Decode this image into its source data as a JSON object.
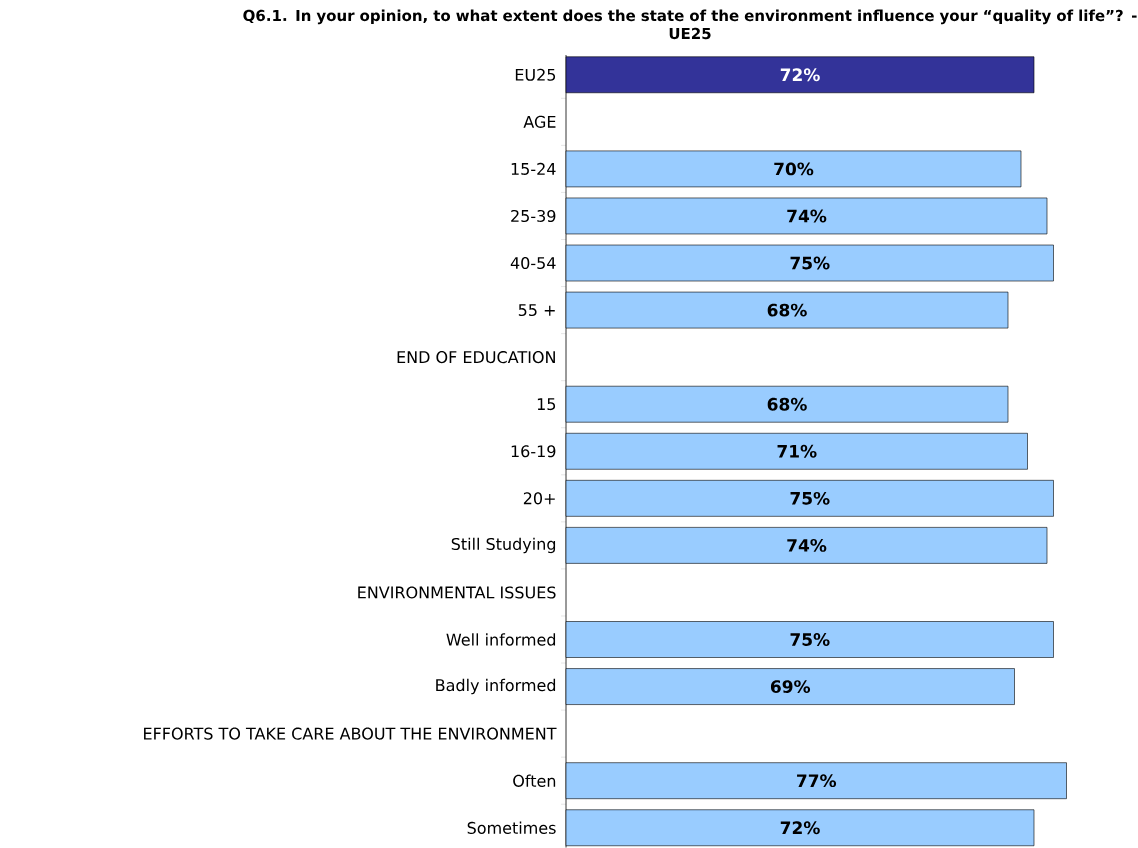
{
  "chart_data": {
    "type": "bar",
    "orientation": "horizontal",
    "title": "Q6.1. In your opinion, to what extent does the state of the environment influence your “quality of life”? - UE25",
    "categories": [
      "EU25",
      "AGE",
      "15-24",
      "25-39",
      "40-54",
      "55 +",
      "END OF EDUCATION",
      "15",
      "16-19",
      "20+",
      "Still Studying",
      "ENVIRONMENTAL ISSUES",
      "Well informed",
      "Badly informed",
      "EFFORTS TO TAKE CARE ABOUT THE ENVIRONMENT",
      "Often",
      "Sometimes"
    ],
    "values": [
      72,
      null,
      70,
      74,
      75,
      68,
      null,
      68,
      71,
      75,
      74,
      null,
      75,
      69,
      null,
      77,
      72
    ],
    "value_labels": [
      "72%",
      null,
      "70%",
      "74%",
      "75%",
      "68%",
      null,
      "68%",
      "71%",
      "75%",
      "74%",
      null,
      "75%",
      "69%",
      null,
      "77%",
      "72%"
    ],
    "colors": [
      "#333399",
      null,
      "#99ccff",
      "#99ccff",
      "#99ccff",
      "#99ccff",
      null,
      "#99ccff",
      "#99ccff",
      "#99ccff",
      "#99ccff",
      null,
      "#99ccff",
      "#99ccff",
      null,
      "#99ccff",
      "#99ccff"
    ]
  }
}
